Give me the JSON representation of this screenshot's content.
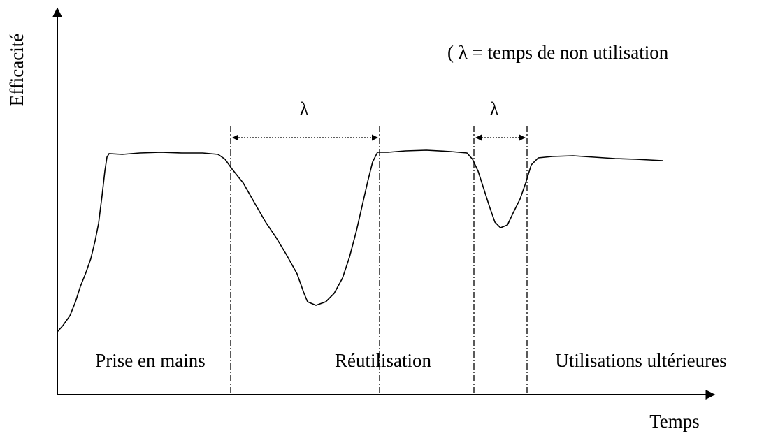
{
  "axes": {
    "y_label": "Efficacité",
    "x_label": "Temps"
  },
  "legend": "( λ = temps de non utilisation",
  "intervals": [
    {
      "label": "λ"
    },
    {
      "label": "λ"
    }
  ],
  "phases": [
    "Prise en mains",
    "Réutilisation",
    "Utilisations ultérieures"
  ]
}
